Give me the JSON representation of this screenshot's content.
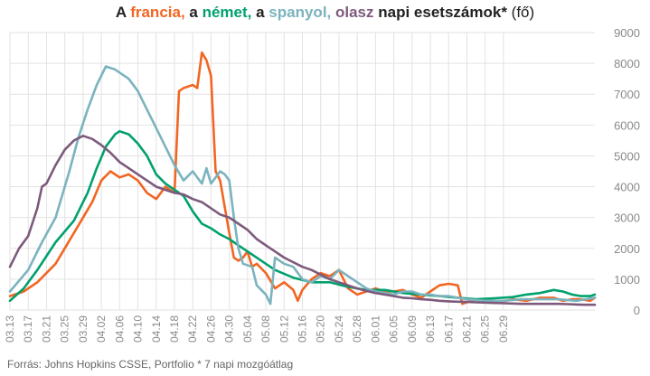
{
  "title_parts": {
    "a1": "A ",
    "fr": "francia,",
    "a2": " a ",
    "de": "német,",
    "a3": " a ",
    "es": "spanyol,",
    "sp": " ",
    "it": "olasz",
    "rest": " napi esetszámok*",
    "unit": " (fő)"
  },
  "source": "Forrás: Johns Hopkins CSSE, Portfolio  * 7 napi mozgóátlag",
  "colors": {
    "francia": "#f26522",
    "nemet": "#00a06f",
    "spanyol": "#7bb3be",
    "olasz": "#7d5a7c",
    "grid": "#e2e2e2",
    "text": "#222222"
  },
  "chart_data": {
    "type": "line",
    "x_start_label": "03.13",
    "x_tick_labels": [
      "03.13",
      "03.17",
      "03.21",
      "03.25",
      "03.29",
      "04.02",
      "04.06",
      "04.10",
      "04.14",
      "04.18",
      "04.22",
      "04.26",
      "04.30",
      "05.04",
      "05.08",
      "05.12",
      "05.16",
      "05.20",
      "05.24",
      "05.28",
      "06.01",
      "06.05",
      "06.09",
      "06.13",
      "06.17",
      "06.21",
      "06.25",
      "06.29"
    ],
    "ylim": [
      0,
      9000
    ],
    "y_ticks": [
      0,
      1000,
      2000,
      3000,
      4000,
      5000,
      6000,
      7000,
      8000,
      9000
    ],
    "y_tick_labels": [
      "0",
      "1000",
      "2000",
      "3000",
      "4000",
      "5000",
      "6000",
      "7000",
      "8000",
      "9000"
    ],
    "grid": true,
    "series": [
      {
        "name": "francia",
        "color": "#f26522",
        "values": [
          [
            0,
            450
          ],
          [
            3,
            600
          ],
          [
            6,
            900
          ],
          [
            10,
            1500
          ],
          [
            14,
            2500
          ],
          [
            18,
            3500
          ],
          [
            20,
            4200
          ],
          [
            22,
            4500
          ],
          [
            24,
            4300
          ],
          [
            26,
            4400
          ],
          [
            28,
            4200
          ],
          [
            30,
            3800
          ],
          [
            32,
            3600
          ],
          [
            34,
            4000
          ],
          [
            36,
            3800
          ],
          [
            37,
            7100
          ],
          [
            38,
            7200
          ],
          [
            40,
            7300
          ],
          [
            41,
            7200
          ],
          [
            42,
            8350
          ],
          [
            43,
            8100
          ],
          [
            44,
            7600
          ],
          [
            45,
            4500
          ],
          [
            46,
            4200
          ],
          [
            48,
            2500
          ],
          [
            49,
            1700
          ],
          [
            50,
            1600
          ],
          [
            51,
            1700
          ],
          [
            52,
            1900
          ],
          [
            53,
            1400
          ],
          [
            54,
            1500
          ],
          [
            56,
            1200
          ],
          [
            58,
            700
          ],
          [
            60,
            900
          ],
          [
            62,
            650
          ],
          [
            63,
            300
          ],
          [
            64,
            650
          ],
          [
            66,
            1000
          ],
          [
            68,
            1200
          ],
          [
            70,
            1100
          ],
          [
            72,
            1300
          ],
          [
            74,
            700
          ],
          [
            76,
            500
          ],
          [
            78,
            600
          ],
          [
            80,
            700
          ],
          [
            82,
            600
          ],
          [
            84,
            600
          ],
          [
            86,
            650
          ],
          [
            88,
            500
          ],
          [
            90,
            400
          ],
          [
            92,
            600
          ],
          [
            94,
            800
          ],
          [
            96,
            850
          ],
          [
            98,
            800
          ],
          [
            99,
            200
          ],
          [
            101,
            300
          ],
          [
            103,
            350
          ],
          [
            105,
            300
          ],
          [
            107,
            250
          ],
          [
            110,
            350
          ],
          [
            113,
            300
          ],
          [
            116,
            400
          ],
          [
            119,
            400
          ],
          [
            121,
            300
          ],
          [
            123,
            350
          ],
          [
            125,
            350
          ],
          [
            127,
            300
          ],
          [
            128,
            400
          ]
        ]
      },
      {
        "name": "német",
        "color": "#00a06f",
        "values": [
          [
            0,
            300
          ],
          [
            3,
            700
          ],
          [
            6,
            1300
          ],
          [
            10,
            2200
          ],
          [
            14,
            2900
          ],
          [
            17,
            3800
          ],
          [
            19,
            4600
          ],
          [
            21,
            5300
          ],
          [
            23,
            5700
          ],
          [
            24,
            5800
          ],
          [
            26,
            5700
          ],
          [
            28,
            5400
          ],
          [
            30,
            5000
          ],
          [
            32,
            4400
          ],
          [
            34,
            4100
          ],
          [
            36,
            3900
          ],
          [
            38,
            3700
          ],
          [
            40,
            3200
          ],
          [
            42,
            2800
          ],
          [
            44,
            2650
          ],
          [
            46,
            2450
          ],
          [
            48,
            2300
          ],
          [
            50,
            2100
          ],
          [
            52,
            1900
          ],
          [
            55,
            1600
          ],
          [
            58,
            1300
          ],
          [
            62,
            1050
          ],
          [
            66,
            900
          ],
          [
            70,
            900
          ],
          [
            74,
            750
          ],
          [
            78,
            650
          ],
          [
            82,
            650
          ],
          [
            86,
            550
          ],
          [
            90,
            500
          ],
          [
            94,
            450
          ],
          [
            98,
            400
          ],
          [
            102,
            350
          ],
          [
            106,
            380
          ],
          [
            110,
            420
          ],
          [
            113,
            500
          ],
          [
            116,
            550
          ],
          [
            119,
            650
          ],
          [
            121,
            600
          ],
          [
            123,
            500
          ],
          [
            125,
            450
          ],
          [
            127,
            450
          ],
          [
            128,
            500
          ]
        ]
      },
      {
        "name": "spanyol",
        "color": "#7bb3be",
        "values": [
          [
            0,
            600
          ],
          [
            4,
            1300
          ],
          [
            7,
            2200
          ],
          [
            10,
            3000
          ],
          [
            13,
            4500
          ],
          [
            15,
            5600
          ],
          [
            17,
            6500
          ],
          [
            19,
            7300
          ],
          [
            21,
            7900
          ],
          [
            23,
            7800
          ],
          [
            26,
            7500
          ],
          [
            28,
            7100
          ],
          [
            30,
            6500
          ],
          [
            32,
            5900
          ],
          [
            34,
            5300
          ],
          [
            36,
            4700
          ],
          [
            38,
            4200
          ],
          [
            40,
            4500
          ],
          [
            42,
            4100
          ],
          [
            43,
            4600
          ],
          [
            44,
            4100
          ],
          [
            45,
            4300
          ],
          [
            46,
            4500
          ],
          [
            47,
            4400
          ],
          [
            48,
            4200
          ],
          [
            49,
            3000
          ],
          [
            50,
            2000
          ],
          [
            51,
            1500
          ],
          [
            53,
            1400
          ],
          [
            54,
            800
          ],
          [
            56,
            500
          ],
          [
            57,
            200
          ],
          [
            58,
            1700
          ],
          [
            60,
            1500
          ],
          [
            62,
            1400
          ],
          [
            64,
            1000
          ],
          [
            66,
            900
          ],
          [
            68,
            1100
          ],
          [
            70,
            1000
          ],
          [
            72,
            1300
          ],
          [
            74,
            1100
          ],
          [
            76,
            900
          ],
          [
            78,
            700
          ],
          [
            80,
            600
          ],
          [
            82,
            550
          ],
          [
            84,
            500
          ],
          [
            86,
            600
          ],
          [
            88,
            600
          ],
          [
            90,
            500
          ],
          [
            92,
            500
          ],
          [
            94,
            450
          ],
          [
            96,
            450
          ],
          [
            98,
            400
          ],
          [
            100,
            350
          ],
          [
            104,
            300
          ],
          [
            108,
            300
          ],
          [
            112,
            350
          ],
          [
            116,
            350
          ],
          [
            120,
            350
          ],
          [
            124,
            300
          ],
          [
            128,
            400
          ]
        ]
      },
      {
        "name": "olasz",
        "color": "#7d5a7c",
        "values": [
          [
            0,
            1400
          ],
          [
            2,
            2000
          ],
          [
            4,
            2400
          ],
          [
            6,
            3300
          ],
          [
            7,
            4000
          ],
          [
            8,
            4100
          ],
          [
            10,
            4700
          ],
          [
            12,
            5200
          ],
          [
            14,
            5500
          ],
          [
            16,
            5650
          ],
          [
            18,
            5550
          ],
          [
            20,
            5350
          ],
          [
            22,
            5100
          ],
          [
            24,
            4800
          ],
          [
            26,
            4600
          ],
          [
            28,
            4400
          ],
          [
            30,
            4200
          ],
          [
            32,
            4000
          ],
          [
            34,
            3900
          ],
          [
            36,
            3800
          ],
          [
            38,
            3750
          ],
          [
            40,
            3600
          ],
          [
            42,
            3500
          ],
          [
            44,
            3300
          ],
          [
            46,
            3100
          ],
          [
            48,
            3000
          ],
          [
            50,
            2800
          ],
          [
            52,
            2600
          ],
          [
            54,
            2300
          ],
          [
            56,
            2100
          ],
          [
            58,
            1900
          ],
          [
            60,
            1700
          ],
          [
            62,
            1550
          ],
          [
            64,
            1400
          ],
          [
            66,
            1300
          ],
          [
            68,
            1150
          ],
          [
            70,
            1000
          ],
          [
            72,
            900
          ],
          [
            74,
            800
          ],
          [
            76,
            700
          ],
          [
            78,
            620
          ],
          [
            80,
            550
          ],
          [
            82,
            500
          ],
          [
            84,
            450
          ],
          [
            86,
            400
          ],
          [
            88,
            380
          ],
          [
            90,
            350
          ],
          [
            92,
            330
          ],
          [
            94,
            300
          ],
          [
            96,
            280
          ],
          [
            98,
            270
          ],
          [
            100,
            260
          ],
          [
            102,
            250
          ],
          [
            104,
            240
          ],
          [
            106,
            230
          ],
          [
            108,
            220
          ],
          [
            110,
            210
          ],
          [
            112,
            200
          ],
          [
            114,
            200
          ],
          [
            116,
            200
          ],
          [
            118,
            200
          ],
          [
            120,
            200
          ],
          [
            122,
            190
          ],
          [
            124,
            180
          ],
          [
            126,
            170
          ],
          [
            128,
            170
          ]
        ]
      }
    ]
  }
}
